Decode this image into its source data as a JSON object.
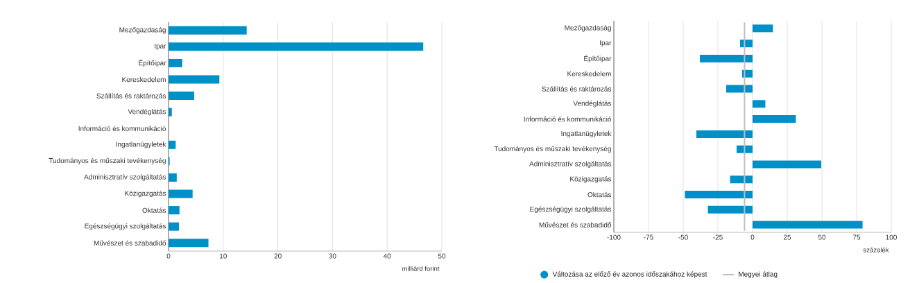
{
  "chart_data": [
    {
      "type": "bar",
      "orientation": "horizontal",
      "categories": [
        "Mezőgazdaság",
        "Ipar",
        "Építőipar",
        "Kereskedelem",
        "Szállítás és raktározás",
        "Vendéglátás",
        "Információ és kommunikáció",
        "Ingatlanügyletek",
        "Tudományos és műszaki tevékenység",
        "Adminisztratív szolgáltatás",
        "Közigazgatás",
        "Oktatás",
        "Egészségügyi szolgáltatás",
        "Művészet és szabadidő"
      ],
      "values": [
        14.3,
        46.6,
        2.5,
        9.3,
        4.7,
        0.6,
        0,
        1.3,
        0.2,
        1.5,
        4.4,
        2.0,
        1.9,
        7.3
      ],
      "color": "#0090c8",
      "xlim": [
        0,
        50
      ],
      "xticks": [
        0,
        10,
        20,
        30,
        40,
        50
      ],
      "grid": "x",
      "xlabel": "milliárd forint"
    },
    {
      "type": "bar",
      "orientation": "horizontal",
      "categories": [
        "Mezőgazdaság",
        "Ipar",
        "Építőipar",
        "Kereskedelem",
        "Szállítás és raktározás",
        "Vendéglátás",
        "Információ és kommunikáció",
        "Ingatlanügyletek",
        "Tudományos és műszaki tevékenység",
        "Adminisztratív szolgáltatás",
        "Közigazgatás",
        "Oktatás",
        "Egészségügyi szolgáltatás",
        "Művészet és szabadidő"
      ],
      "series": [
        {
          "name": "Változása az előző év azonos időszakához képest",
          "color": "#0090c8",
          "values": [
            14.7,
            -9,
            -38,
            -7.5,
            -19,
            9.2,
            31.2,
            -40.5,
            -11.5,
            49.5,
            -16.2,
            -48.8,
            -32.2,
            79.3
          ]
        }
      ],
      "ref_lines": [
        {
          "axis": "x",
          "value": -5.8,
          "label": "Megyei átlag",
          "color": "#bfbfbf"
        }
      ],
      "xlim": [
        -100,
        100
      ],
      "xticks": [
        -100,
        -75,
        -50,
        -25,
        0,
        25,
        50,
        75,
        100
      ],
      "grid": "x",
      "xlabel": "százalék",
      "legend": "bottom"
    }
  ]
}
